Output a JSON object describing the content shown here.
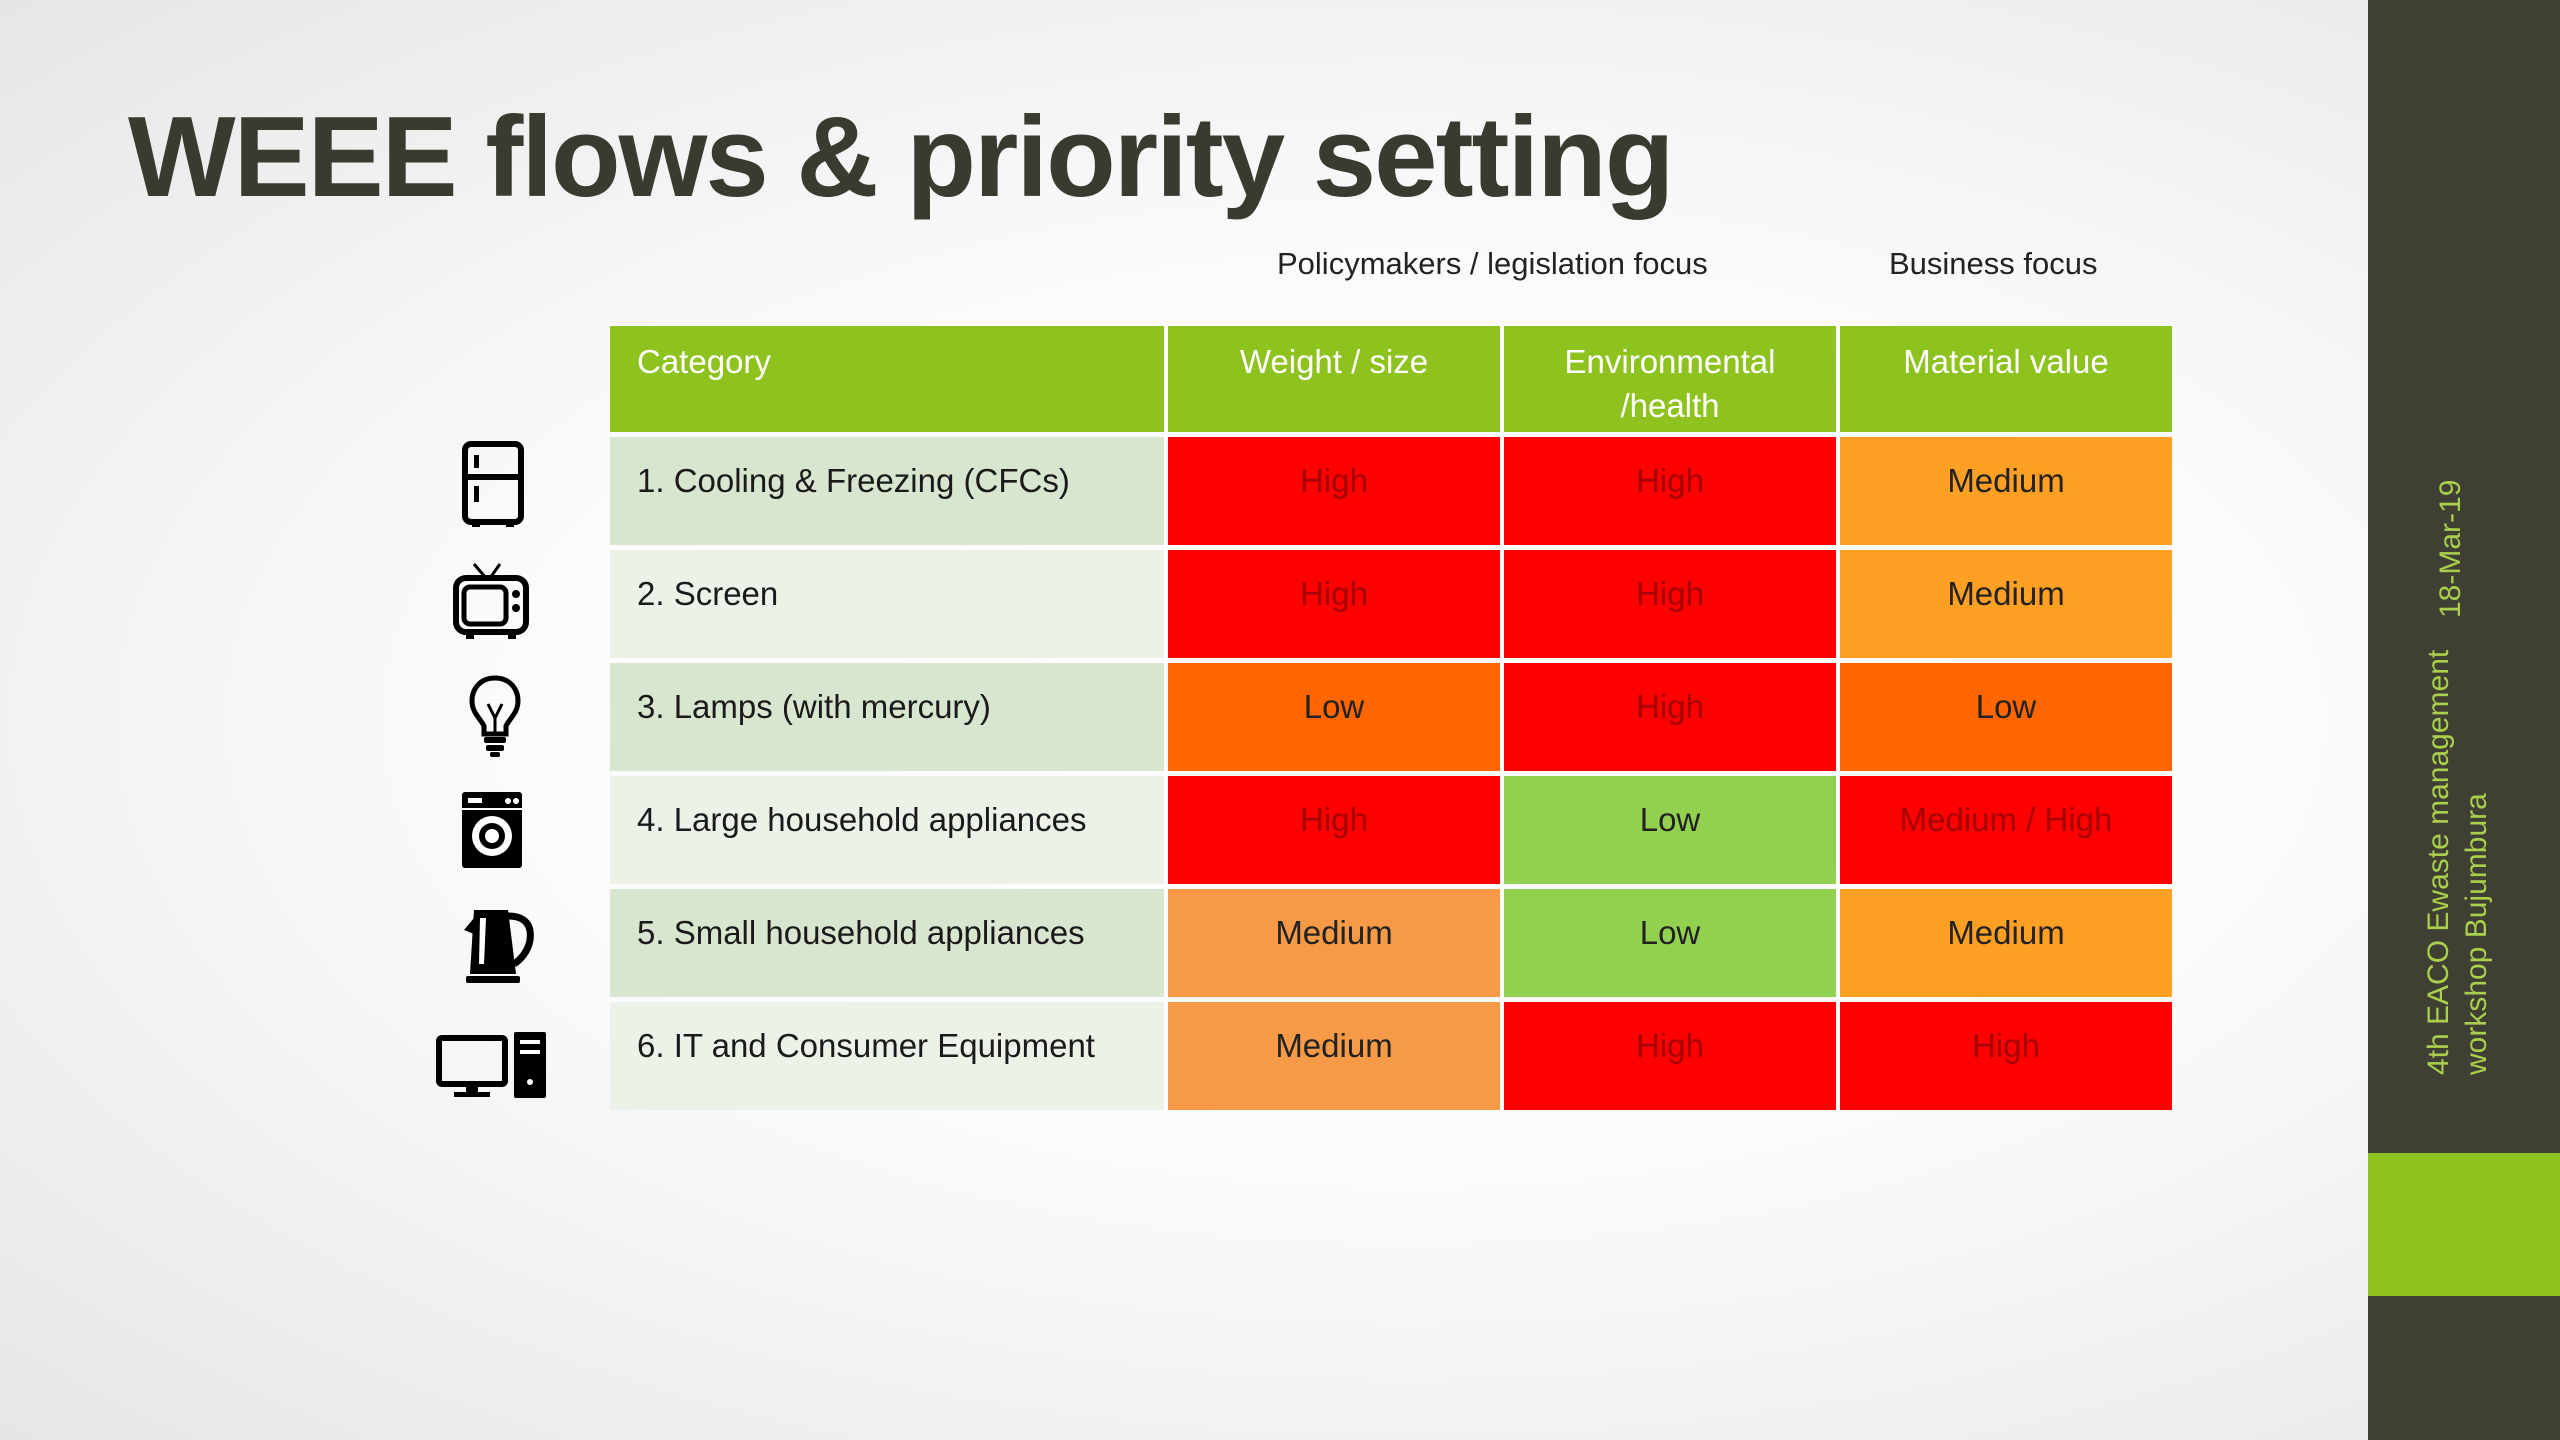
{
  "slide": {
    "title": "WEEE flows & priority setting",
    "focus_policy": "Policymakers / legislation focus",
    "focus_business": "Business focus"
  },
  "sidebar": {
    "event": "4th EACO Ewaste management workshop Bujumbura",
    "event_line1": "4th EACO Ewaste management",
    "event_line2": "workshop Bujumbura",
    "date": "18-Mar-19",
    "accent_color": "#8dc21f",
    "bar_color": "#403f33"
  },
  "table": {
    "headers": [
      "Category",
      "Weight / size",
      "Environmental /health",
      "Material value"
    ],
    "header_line2": "/health",
    "header_env_line1": "Environmental",
    "rows": [
      {
        "category": "1. Cooling & Freezing (CFCs)",
        "weight": "High",
        "env": "High",
        "material": "Medium",
        "icon": "fridge-icon"
      },
      {
        "category": "2. Screen",
        "weight": "High",
        "env": "High",
        "material": "Medium",
        "icon": "tv-icon"
      },
      {
        "category": "3. Lamps (with mercury)",
        "weight": "Low",
        "env": "High",
        "material": "Low",
        "icon": "lightbulb-icon"
      },
      {
        "category": "4. Large household appliances",
        "weight": "High",
        "env": "Low",
        "material": "Medium / High",
        "icon": "washing-machine-icon"
      },
      {
        "category": "5. Small household appliances",
        "weight": "Medium",
        "env": "Low",
        "material": "Medium",
        "icon": "kettle-icon"
      },
      {
        "category": "6. IT and Consumer Equipment",
        "weight": "Medium",
        "env": "High",
        "material": "High",
        "icon": "computer-icon"
      }
    ]
  },
  "colors": {
    "high": "#ff0000",
    "low_orange": "#ff6600",
    "medium_amber": "#ffa024",
    "medium_peach": "#f79a48",
    "low_green": "#92d050",
    "header_green": "#8dc21f"
  }
}
